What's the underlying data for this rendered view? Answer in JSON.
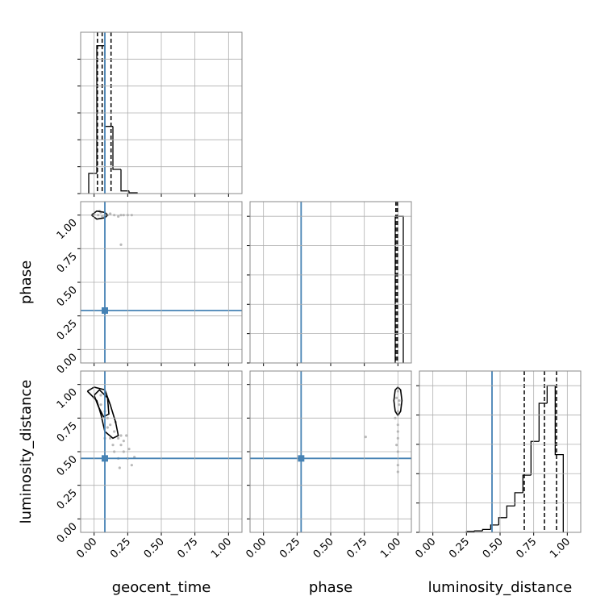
{
  "chart_data": [
    {
      "type": "histogram",
      "color": "#000000",
      "truth_color": "#4682b4",
      "bins": [
        -0.04,
        0.02,
        0.08,
        0.14,
        0.2,
        0.26,
        0.32
      ],
      "values": [
        0.75,
        5.5,
        2.5,
        0.9,
        0.1,
        0.03
      ],
      "quantiles": [
        0.025,
        0.06,
        0.126
      ],
      "truth": 0.08,
      "xlim": [
        -0.1,
        1.1
      ],
      "ylim": [
        0,
        6
      ],
      "xticks": [
        0,
        0.25,
        0.5,
        0.75,
        1
      ],
      "yticks": [
        0,
        1,
        2,
        3,
        4,
        5
      ],
      "grid": true
    },
    {
      "type": "scatter",
      "color": "#808080",
      "truth_color": "#4682b4",
      "ylabel": "phase",
      "x": [
        0.0,
        0.03,
        0.05,
        0.08,
        0.1,
        0.12,
        0.15,
        0.18,
        0.2,
        0.22,
        0.25,
        0.28,
        0.04,
        0.06,
        0.2
      ],
      "y": [
        1.01,
        1.0,
        1.02,
        0.99,
        1.0,
        1.01,
        1.0,
        0.99,
        1.0,
        1.0,
        1.0,
        1.0,
        1.03,
        0.99,
        0.78
      ],
      "contours": [
        {
          "x": [
            -0.02,
            0.02,
            0.08,
            0.1,
            0.08,
            0.02,
            -0.02
          ],
          "y": [
            1.0,
            1.03,
            1.02,
            1.0,
            0.98,
            0.97,
            1.0
          ]
        }
      ],
      "truth_x": 0.08,
      "truth_y": 0.29,
      "xlim": [
        -0.1,
        1.1
      ],
      "ylim": [
        -0.1,
        1.1
      ],
      "xticks": [
        0,
        0.25,
        0.5,
        0.75,
        1
      ],
      "yticks": [
        {
          "value": 0,
          "label": "0.00"
        },
        {
          "value": 0.25,
          "label": "0.25"
        },
        {
          "value": 0.5,
          "label": "0.50"
        },
        {
          "value": 0.75,
          "label": "0.75"
        },
        {
          "value": 1,
          "label": "1.00"
        }
      ],
      "grid": true
    },
    {
      "type": "histogram",
      "color": "#000000",
      "truth_color": "#4682b4",
      "bins": [
        0.98,
        1.04
      ],
      "values": [
        5
      ],
      "quantiles": [
        0.985,
        0.995,
        1.0
      ],
      "truth": 0.28,
      "xlim": [
        -0.1,
        1.1
      ],
      "ylim": [
        0,
        5.5
      ],
      "xticks": [
        0,
        0.25,
        0.5,
        0.75,
        1
      ],
      "yticks": [
        0,
        1,
        2,
        3,
        4,
        5
      ],
      "grid": true
    },
    {
      "type": "scatter",
      "color": "#808080",
      "truth_color": "#4682b4",
      "xlabel": "geocent_time",
      "ylabel": "luminosity_distance",
      "x": [
        0.0,
        0.05,
        0.08,
        0.1,
        0.12,
        0.15,
        0.18,
        0.2,
        0.22,
        0.25,
        0.28,
        0.12,
        0.15,
        0.1,
        0.2,
        0.18,
        0.22,
        0.05,
        0.14,
        0.26,
        0.3,
        0.16,
        0.08,
        0.24,
        0.19
      ],
      "y": [
        0.9,
        0.85,
        0.8,
        0.75,
        0.7,
        0.65,
        0.6,
        0.55,
        0.5,
        0.45,
        0.4,
        0.6,
        0.5,
        0.68,
        0.62,
        0.45,
        0.58,
        0.92,
        0.55,
        0.52,
        0.46,
        0.72,
        0.6,
        0.62,
        0.38
      ],
      "contours": [
        {
          "x": [
            -0.05,
            0.0,
            0.08,
            0.12,
            0.16,
            0.18,
            0.14,
            0.08,
            0.05,
            0.02,
            -0.05
          ],
          "y": [
            0.95,
            0.98,
            0.96,
            0.85,
            0.72,
            0.62,
            0.6,
            0.65,
            0.78,
            0.88,
            0.95
          ]
        },
        {
          "x": [
            0.0,
            0.04,
            0.1,
            0.11,
            0.07,
            0.03,
            0.0
          ],
          "y": [
            0.92,
            0.96,
            0.9,
            0.78,
            0.76,
            0.84,
            0.92
          ]
        }
      ],
      "truth_x": 0.08,
      "truth_y": 0.45,
      "xlim": [
        -0.1,
        1.1
      ],
      "ylim": [
        -0.1,
        1.1
      ],
      "xticks": [
        {
          "value": 0,
          "label": "0.00"
        },
        {
          "value": 0.25,
          "label": "0.25"
        },
        {
          "value": 0.5,
          "label": "0.50"
        },
        {
          "value": 0.75,
          "label": "0.75"
        },
        {
          "value": 1,
          "label": "1.00"
        }
      ],
      "yticks": [
        {
          "value": 0,
          "label": "0.00"
        },
        {
          "value": 0.25,
          "label": "0.25"
        },
        {
          "value": 0.5,
          "label": "0.50"
        },
        {
          "value": 0.75,
          "label": "0.75"
        },
        {
          "value": 1,
          "label": "1.00"
        }
      ],
      "grid": true
    },
    {
      "type": "scatter",
      "color": "#808080",
      "truth_color": "#4682b4",
      "xlabel": "phase",
      "x": [
        1.0,
        0.99,
        1.01,
        1.0,
        1.0,
        1.0,
        0.99,
        1.0,
        1.0,
        0.76,
        1.0,
        1.01,
        1.0,
        0.98
      ],
      "y": [
        0.95,
        0.9,
        0.85,
        0.8,
        0.7,
        0.6,
        0.55,
        0.5,
        0.4,
        0.61,
        0.35,
        0.88,
        0.65,
        0.75
      ],
      "contours": [
        {
          "x": [
            0.98,
            1.0,
            1.02,
            1.03,
            1.02,
            1.0,
            0.98,
            0.97,
            0.98
          ],
          "y": [
            0.8,
            0.77,
            0.8,
            0.88,
            0.96,
            0.98,
            0.96,
            0.88,
            0.8
          ]
        }
      ],
      "truth_x": 0.28,
      "truth_y": 0.45,
      "xlim": [
        -0.1,
        1.1
      ],
      "ylim": [
        -0.1,
        1.1
      ],
      "xticks": [
        {
          "value": 0,
          "label": "0.00"
        },
        {
          "value": 0.25,
          "label": "0.25"
        },
        {
          "value": 0.5,
          "label": "0.50"
        },
        {
          "value": 0.75,
          "label": "0.75"
        },
        {
          "value": 1,
          "label": "1.00"
        }
      ],
      "yticks": [
        0,
        0.25,
        0.5,
        0.75,
        1
      ],
      "grid": true
    },
    {
      "type": "histogram",
      "color": "#000000",
      "truth_color": "#4682b4",
      "xlabel": "luminosity_distance",
      "bins": [
        0.25,
        0.31,
        0.37,
        0.43,
        0.49,
        0.55,
        0.61,
        0.67,
        0.73,
        0.79,
        0.85,
        0.91,
        0.97
      ],
      "values": [
        0.03,
        0.05,
        0.1,
        0.25,
        0.5,
        0.9,
        1.35,
        1.95,
        3.1,
        4.4,
        5.0,
        2.65
      ],
      "quantiles": [
        0.68,
        0.83,
        0.92
      ],
      "truth": 0.44,
      "xlim": [
        -0.1,
        1.1
      ],
      "ylim": [
        0,
        5.5
      ],
      "xticks": [
        {
          "value": 0,
          "label": "0.00"
        },
        {
          "value": 0.25,
          "label": "0.25"
        },
        {
          "value": 0.5,
          "label": "0.50"
        },
        {
          "value": 0.75,
          "label": "0.75"
        },
        {
          "value": 1,
          "label": "1.00"
        }
      ],
      "yticks": [
        0,
        1,
        2,
        3,
        4,
        5
      ],
      "grid": true
    }
  ]
}
